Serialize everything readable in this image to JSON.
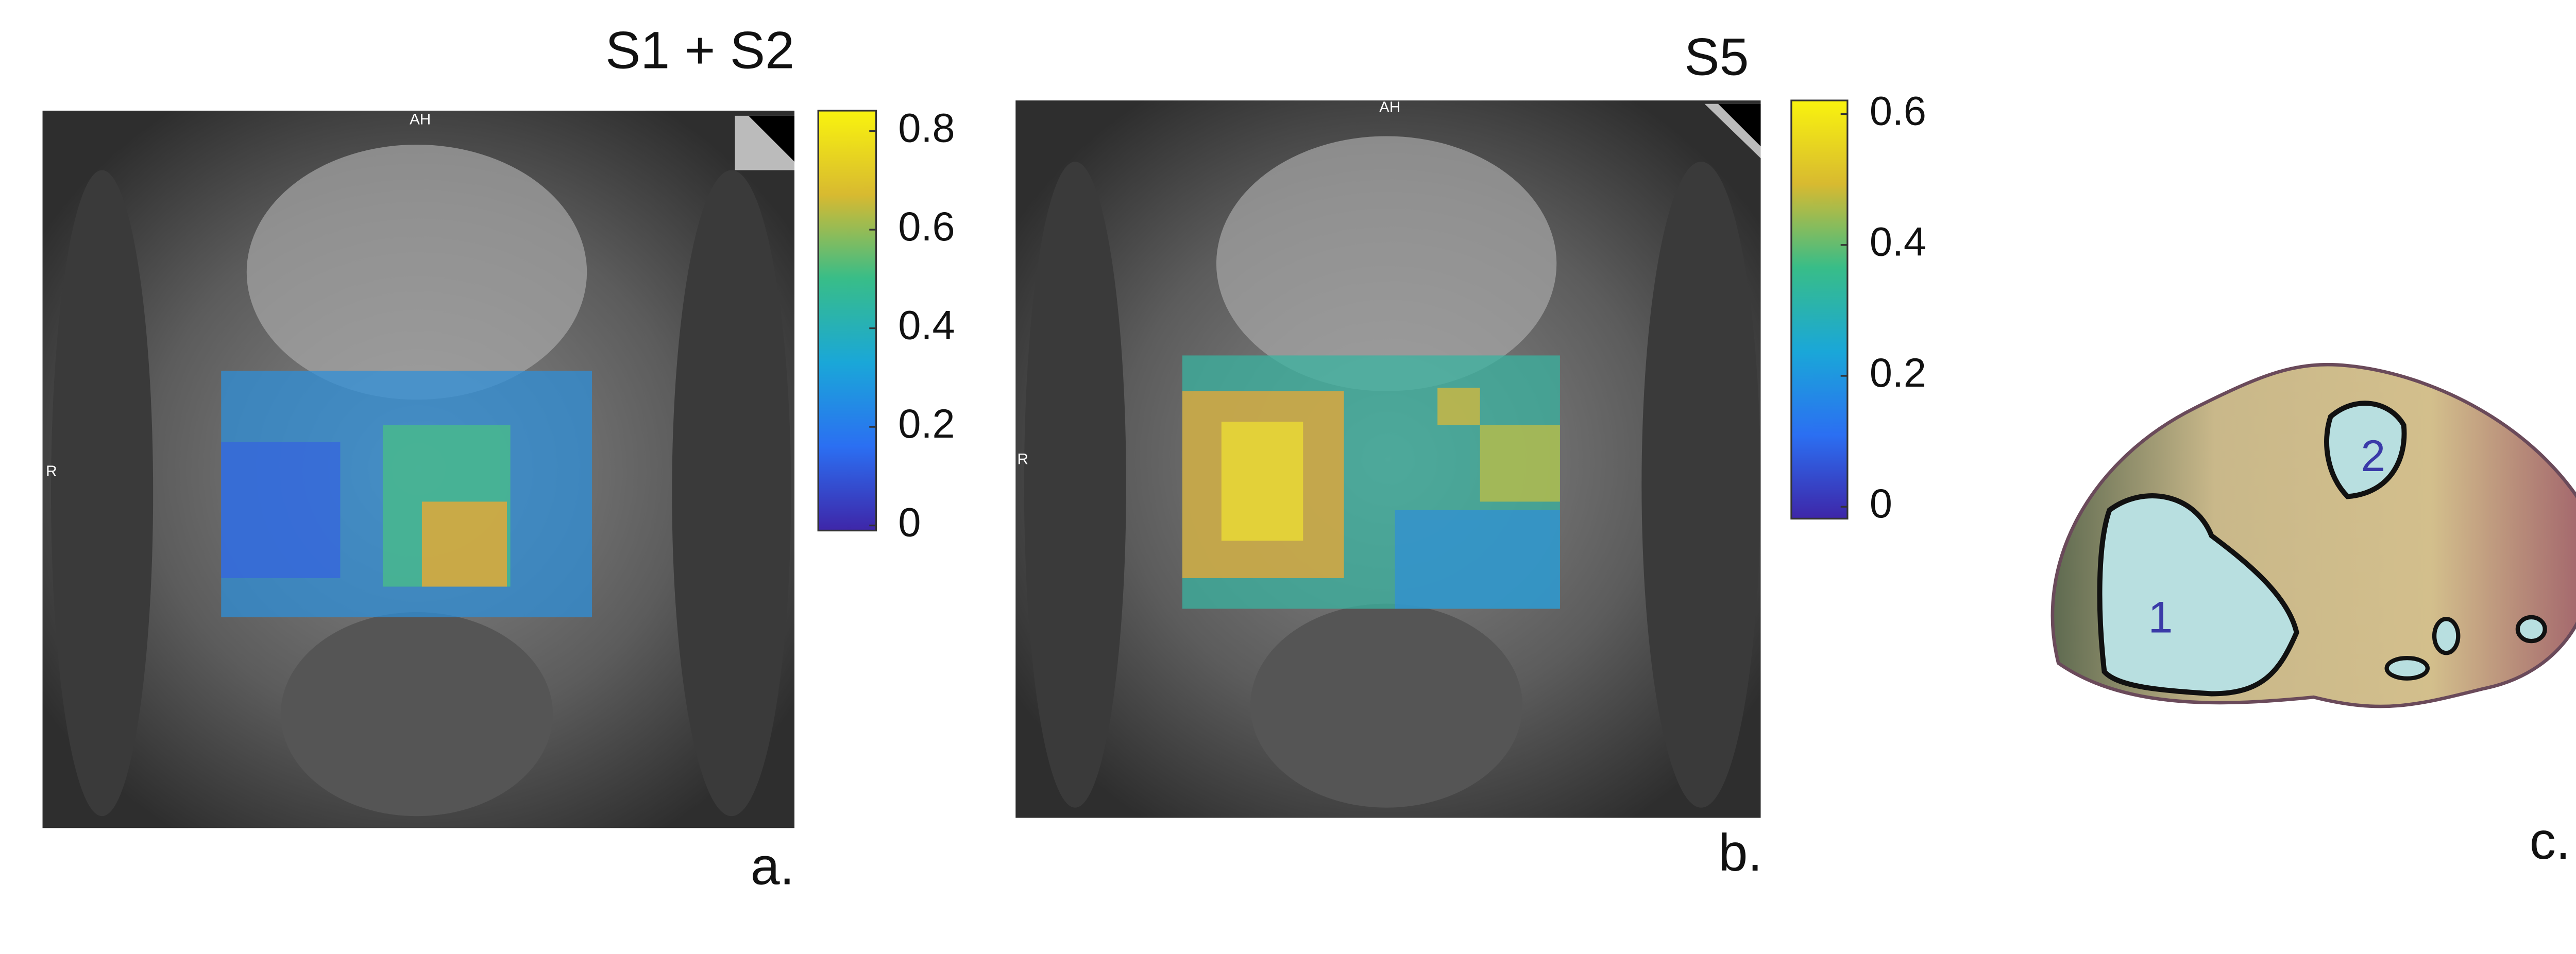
{
  "panels": [
    {
      "title": "S1 + S2",
      "colorbar_ticks": [
        0,
        0.2,
        0.4,
        0.6,
        0.8
      ],
      "label": "a.",
      "annotations": [
        "AH",
        "R"
      ]
    },
    {
      "title": "S5",
      "colorbar_ticks": [
        0,
        0.2,
        0.4,
        0.6
      ],
      "label": "b.",
      "annotations": [
        "AH",
        "R"
      ]
    },
    {
      "label": "c.",
      "regions": [
        "1",
        "2"
      ]
    }
  ]
}
